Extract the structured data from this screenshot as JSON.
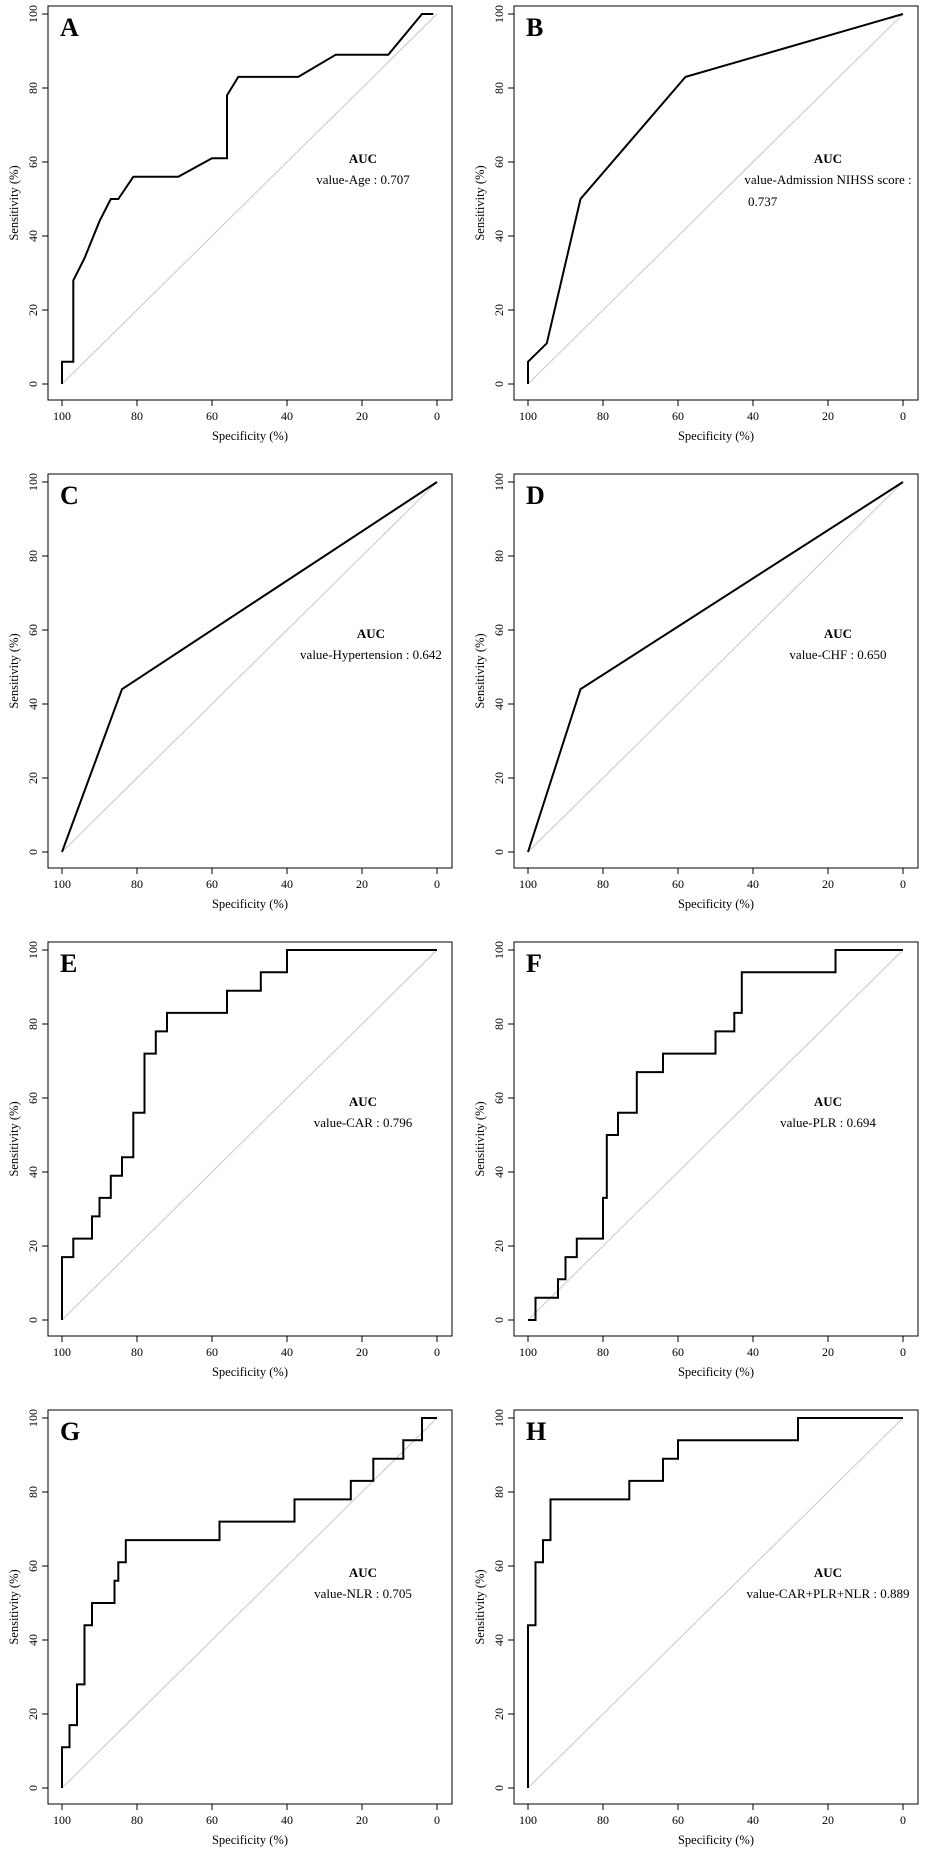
{
  "axes": {
    "xlabel": "Specificity (%)",
    "ylabel": "Sensitivity (%)",
    "xticks": [
      "100",
      "80",
      "60",
      "40",
      "20",
      "0"
    ],
    "yticks": [
      "0",
      "20",
      "40",
      "60",
      "80",
      "100"
    ]
  },
  "colors": {
    "curve": "#000000",
    "diagonal": "#c8c8c8",
    "frame": "#000000"
  },
  "chart_data": [
    {
      "type": "line",
      "panel": "A",
      "xlabel": "Specificity (%)",
      "ylabel": "Sensitivity (%)",
      "xlim": [
        100,
        0
      ],
      "ylim": [
        0,
        100
      ],
      "grid": false,
      "reference_line": "diagonal",
      "auc_title": "AUC",
      "auc_lines": [
        "value-Age : 0.707"
      ],
      "x": [
        100,
        100,
        97,
        97,
        94,
        90,
        87,
        85,
        81,
        69,
        60,
        56,
        56,
        53,
        37,
        27,
        13,
        4,
        1
      ],
      "y": [
        0,
        6,
        6,
        28,
        34,
        44,
        50,
        50,
        56,
        56,
        61,
        61,
        78,
        83,
        83,
        89,
        89,
        100,
        100
      ]
    },
    {
      "type": "line",
      "panel": "B",
      "xlabel": "Specificity (%)",
      "ylabel": "Sensitivity (%)",
      "xlim": [
        100,
        0
      ],
      "ylim": [
        0,
        100
      ],
      "grid": false,
      "reference_line": "diagonal",
      "auc_title": "AUC",
      "auc_lines": [
        "value-Admission NIHSS score :",
        "0.737"
      ],
      "x": [
        100,
        100,
        95,
        86,
        58,
        0
      ],
      "y": [
        0,
        6,
        11,
        50,
        83,
        100
      ]
    },
    {
      "type": "line",
      "panel": "C",
      "xlabel": "Specificity (%)",
      "ylabel": "Sensitivity (%)",
      "xlim": [
        100,
        0
      ],
      "ylim": [
        0,
        100
      ],
      "grid": false,
      "reference_line": "diagonal",
      "auc_title": "AUC",
      "auc_lines": [
        "value-Hypertension : 0.642"
      ],
      "x": [
        100,
        84,
        0
      ],
      "y": [
        0,
        44,
        100
      ]
    },
    {
      "type": "line",
      "panel": "D",
      "xlabel": "Specificity (%)",
      "ylabel": "Sensitivity (%)",
      "xlim": [
        100,
        0
      ],
      "ylim": [
        0,
        100
      ],
      "grid": false,
      "reference_line": "diagonal",
      "auc_title": "AUC",
      "auc_lines": [
        "value-CHF : 0.650"
      ],
      "x": [
        100,
        86,
        0
      ],
      "y": [
        0,
        44,
        100
      ]
    },
    {
      "type": "line",
      "panel": "E",
      "xlabel": "Specificity (%)",
      "ylabel": "Sensitivity (%)",
      "xlim": [
        100,
        0
      ],
      "ylim": [
        0,
        100
      ],
      "grid": false,
      "reference_line": "diagonal",
      "auc_title": "AUC",
      "auc_lines": [
        "value-CAR : 0.796"
      ],
      "x": [
        100,
        100,
        97,
        97,
        92,
        92,
        90,
        90,
        87,
        87,
        84,
        84,
        81,
        81,
        78,
        78,
        75,
        75,
        72,
        72,
        56,
        56,
        47,
        47,
        40,
        40,
        0
      ],
      "y": [
        0,
        17,
        17,
        22,
        22,
        28,
        28,
        33,
        33,
        39,
        39,
        44,
        44,
        56,
        56,
        72,
        72,
        78,
        78,
        83,
        83,
        89,
        89,
        94,
        94,
        100,
        100
      ],
      "curve_style": "step"
    },
    {
      "type": "line",
      "panel": "F",
      "xlabel": "Specificity (%)",
      "ylabel": "Sensitivity (%)",
      "xlim": [
        100,
        0
      ],
      "ylim": [
        0,
        100
      ],
      "grid": false,
      "reference_line": "diagonal",
      "auc_title": "AUC",
      "auc_lines": [
        "value-PLR : 0.694"
      ],
      "x": [
        100,
        98,
        98,
        92,
        92,
        90,
        90,
        87,
        87,
        80,
        80,
        79,
        79,
        76,
        76,
        71,
        71,
        64,
        64,
        50,
        50,
        45,
        45,
        43,
        43,
        18,
        18,
        0
      ],
      "y": [
        0,
        0,
        6,
        6,
        11,
        11,
        17,
        17,
        22,
        22,
        33,
        33,
        50,
        50,
        56,
        56,
        67,
        67,
        72,
        72,
        78,
        78,
        83,
        83,
        94,
        94,
        100,
        100
      ],
      "curve_style": "step"
    },
    {
      "type": "line",
      "panel": "G",
      "xlabel": "Specificity (%)",
      "ylabel": "Sensitivity (%)",
      "xlim": [
        100,
        0
      ],
      "ylim": [
        0,
        100
      ],
      "grid": false,
      "reference_line": "diagonal",
      "auc_title": "AUC",
      "auc_lines": [
        "value-NLR : 0.705"
      ],
      "x": [
        100,
        100,
        98,
        98,
        96,
        96,
        94,
        94,
        92,
        92,
        86,
        86,
        85,
        85,
        83,
        83,
        58,
        58,
        38,
        38,
        23,
        23,
        17,
        17,
        9,
        9,
        4,
        4,
        0
      ],
      "y": [
        0,
        11,
        11,
        17,
        17,
        28,
        28,
        44,
        44,
        50,
        50,
        56,
        56,
        61,
        61,
        67,
        67,
        72,
        72,
        78,
        78,
        83,
        83,
        89,
        89,
        94,
        94,
        100,
        100
      ],
      "curve_style": "step"
    },
    {
      "type": "line",
      "panel": "H",
      "xlabel": "Specificity (%)",
      "ylabel": "Sensitivity (%)",
      "xlim": [
        100,
        0
      ],
      "ylim": [
        0,
        100
      ],
      "grid": false,
      "reference_line": "diagonal",
      "auc_title": "AUC",
      "auc_lines": [
        "value-CAR+PLR+NLR : 0.889"
      ],
      "x": [
        100,
        100,
        98,
        98,
        96,
        96,
        94,
        94,
        73,
        73,
        64,
        64,
        60,
        60,
        28,
        28,
        0
      ],
      "y": [
        0,
        44,
        44,
        61,
        61,
        67,
        67,
        78,
        78,
        83,
        83,
        89,
        89,
        94,
        94,
        100,
        100
      ],
      "curve_style": "step"
    }
  ]
}
